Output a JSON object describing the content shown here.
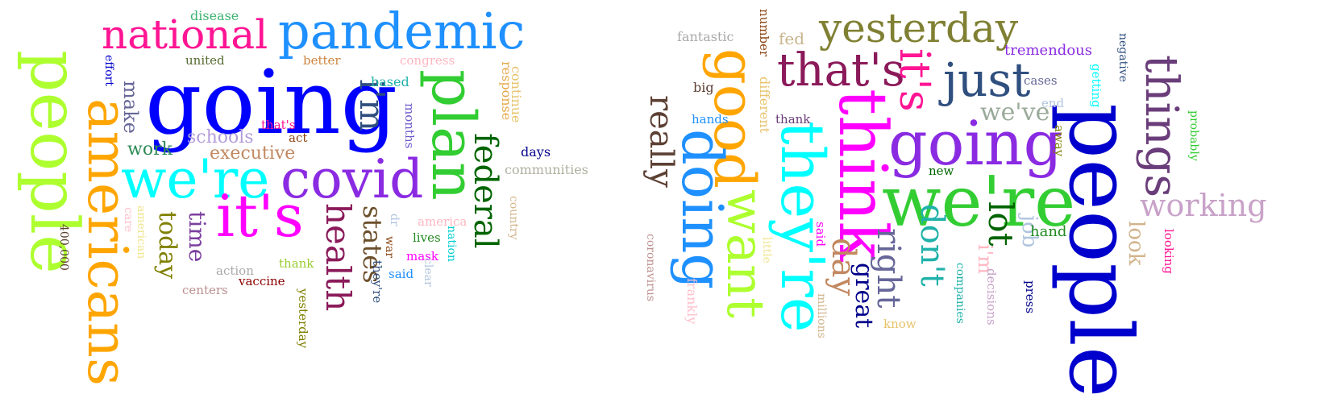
{
  "clouds": [
    {
      "words": [
        {
          "text": "people",
          "color": "#adff2f",
          "rot": true
        },
        {
          "text": "americans",
          "color": "#ffa500",
          "rot": true
        },
        {
          "text": "going",
          "color": "#0000ff",
          "rot": false
        },
        {
          "text": "national",
          "color": "#ff1493",
          "rot": false
        },
        {
          "text": "pandemic",
          "color": "#1e90ff",
          "rot": false
        },
        {
          "text": "plan",
          "color": "#32cd32",
          "rot": true
        },
        {
          "text": "we're",
          "color": "#00ffff",
          "rot": false
        },
        {
          "text": "covid",
          "color": "#8a2be2",
          "rot": false
        },
        {
          "text": "it's",
          "color": "#ff00ff",
          "rot": false
        },
        {
          "text": "i'm",
          "color": "#2f4f7f",
          "rot": true
        },
        {
          "text": "health",
          "color": "#8b1a5a",
          "rot": true
        },
        {
          "text": "federal",
          "color": "#006400",
          "rot": true
        },
        {
          "text": "states",
          "color": "#6b4e2a",
          "rot": true
        },
        {
          "text": "today",
          "color": "#808000",
          "rot": true
        },
        {
          "text": "time",
          "color": "#7b3f9e",
          "rot": true
        },
        {
          "text": "make",
          "color": "#666699",
          "rot": true
        },
        {
          "text": "work",
          "color": "#2e8b57",
          "rot": false
        },
        {
          "text": "schools",
          "color": "#b39ddb",
          "rot": false
        },
        {
          "text": "executive",
          "color": "#c28860",
          "rot": false
        },
        {
          "text": "disease",
          "color": "#3cb371",
          "rot": false
        },
        {
          "text": "united",
          "color": "#556b2f",
          "rot": false
        },
        {
          "text": "better",
          "color": "#cd853f",
          "rot": false
        },
        {
          "text": "congress",
          "color": "#ffb6c1",
          "rot": false
        },
        {
          "text": "effort",
          "color": "#0000cd",
          "rot": true
        },
        {
          "text": "based",
          "color": "#20b2aa",
          "rot": false
        },
        {
          "text": "continue",
          "color": "#e6c36a",
          "rot": true
        },
        {
          "text": "response",
          "color": "#e6a84a",
          "rot": true
        },
        {
          "text": "months",
          "color": "#6a5acd",
          "rot": true
        },
        {
          "text": "that's",
          "color": "#ff1493",
          "rot": false
        },
        {
          "text": "act",
          "color": "#8b4513",
          "rot": false
        },
        {
          "text": "days",
          "color": "#00008b",
          "rot": false
        },
        {
          "text": "communities",
          "color": "#b0b0a0",
          "rot": false
        },
        {
          "text": "country",
          "color": "#d2b48c",
          "rot": true
        },
        {
          "text": "america",
          "color": "#ffb6c1",
          "rot": false
        },
        {
          "text": "care",
          "color": "#ffc0cb",
          "rot": true
        },
        {
          "text": "american",
          "color": "#f0e68c",
          "rot": true
        },
        {
          "text": "400,000",
          "color": "#5c4033",
          "rot": true
        },
        {
          "text": "dr",
          "color": "#b0c4de",
          "rot": true
        },
        {
          "text": "war",
          "color": "#8b4513",
          "rot": true
        },
        {
          "text": "lives",
          "color": "#228b22",
          "rot": false
        },
        {
          "text": "nation",
          "color": "#00ced1",
          "rot": true
        },
        {
          "text": "mask",
          "color": "#ff00ff",
          "rot": false
        },
        {
          "text": "said",
          "color": "#1e90ff",
          "rot": false
        },
        {
          "text": "clear",
          "color": "#b0c4de",
          "rot": true
        },
        {
          "text": "they're",
          "color": "#2f4f7f",
          "rot": true
        },
        {
          "text": "action",
          "color": "#a9a9a9",
          "rot": false
        },
        {
          "text": "thank",
          "color": "#9acd32",
          "rot": false
        },
        {
          "text": "vaccine",
          "color": "#8b0000",
          "rot": false
        },
        {
          "text": "centers",
          "color": "#bc8f8f",
          "rot": false
        },
        {
          "text": "yesterday",
          "color": "#808000",
          "rot": true
        }
      ]
    },
    {
      "words": [
        {
          "text": "people",
          "color": "#0000cd",
          "rot": true
        },
        {
          "text": "we're",
          "color": "#32cd32",
          "rot": false
        },
        {
          "text": "going",
          "color": "#8a2be2",
          "rot": false
        },
        {
          "text": "think",
          "color": "#ff00ff",
          "rot": true
        },
        {
          "text": "they're",
          "color": "#00ffff",
          "rot": true
        },
        {
          "text": "good",
          "color": "#ffa500",
          "rot": true
        },
        {
          "text": "want",
          "color": "#adff2f",
          "rot": true
        },
        {
          "text": "doing",
          "color": "#1e90ff",
          "rot": true
        },
        {
          "text": "yesterday",
          "color": "#808033",
          "rot": false
        },
        {
          "text": "that's",
          "color": "#8b1a5a",
          "rot": false
        },
        {
          "text": "it's",
          "color": "#ff1493",
          "rot": true
        },
        {
          "text": "just",
          "color": "#2f4f7f",
          "rot": false
        },
        {
          "text": "things",
          "color": "#6a3d7a",
          "rot": true
        },
        {
          "text": "really",
          "color": "#5c4033",
          "rot": true
        },
        {
          "text": "working",
          "color": "#c8a2c8",
          "rot": false
        },
        {
          "text": "lot",
          "color": "#006400",
          "rot": true
        },
        {
          "text": "don't",
          "color": "#20b2aa",
          "rot": true
        },
        {
          "text": "right",
          "color": "#666699",
          "rot": true
        },
        {
          "text": "day",
          "color": "#c28860",
          "rot": true
        },
        {
          "text": "we've",
          "color": "#9aaa9a",
          "rot": false
        },
        {
          "text": "job",
          "color": "#b0c4de",
          "rot": true
        },
        {
          "text": "look",
          "color": "#d2b48c",
          "rot": true
        },
        {
          "text": "hand",
          "color": "#228b22",
          "rot": false
        },
        {
          "text": "i'm",
          "color": "#ffb6c1",
          "rot": true
        },
        {
          "text": "great",
          "color": "#00008b",
          "rot": true
        },
        {
          "text": "fantastic",
          "color": "#a9a9a9",
          "rot": false
        },
        {
          "text": "number",
          "color": "#8b4513",
          "rot": true
        },
        {
          "text": "fed",
          "color": "#c8b48c",
          "rot": false
        },
        {
          "text": "big",
          "color": "#5c4033",
          "rot": false
        },
        {
          "text": "different",
          "color": "#e6c36a",
          "rot": true
        },
        {
          "text": "hands",
          "color": "#1e90ff",
          "rot": false
        },
        {
          "text": "thank",
          "color": "#6a3d7a",
          "rot": false
        },
        {
          "text": "tremendous",
          "color": "#8a2be2",
          "rot": false
        },
        {
          "text": "negative",
          "color": "#2f4f7f",
          "rot": true
        },
        {
          "text": "cases",
          "color": "#666699",
          "rot": false
        },
        {
          "text": "getting",
          "color": "#00ffff",
          "rot": true
        },
        {
          "text": "end",
          "color": "#b0c4de",
          "rot": false
        },
        {
          "text": "away",
          "color": "#808000",
          "rot": true
        },
        {
          "text": "new",
          "color": "#006400",
          "rot": false
        },
        {
          "text": "probably",
          "color": "#32cd32",
          "rot": true
        },
        {
          "text": "looking",
          "color": "#ff1493",
          "rot": true
        },
        {
          "text": "said",
          "color": "#ff00ff",
          "rot": true
        },
        {
          "text": "little",
          "color": "#f0e68c",
          "rot": true
        },
        {
          "text": "coronavirus",
          "color": "#bc8f8f",
          "rot": true
        },
        {
          "text": "frankly",
          "color": "#ffc0cb",
          "rot": true
        },
        {
          "text": "millions",
          "color": "#d2b48c",
          "rot": true
        },
        {
          "text": "know",
          "color": "#e6c36a",
          "rot": false
        },
        {
          "text": "companies",
          "color": "#20b2aa",
          "rot": true
        },
        {
          "text": "decisions",
          "color": "#c8a2c8",
          "rot": true
        },
        {
          "text": "press",
          "color": "#00008b",
          "rot": true
        }
      ]
    }
  ]
}
